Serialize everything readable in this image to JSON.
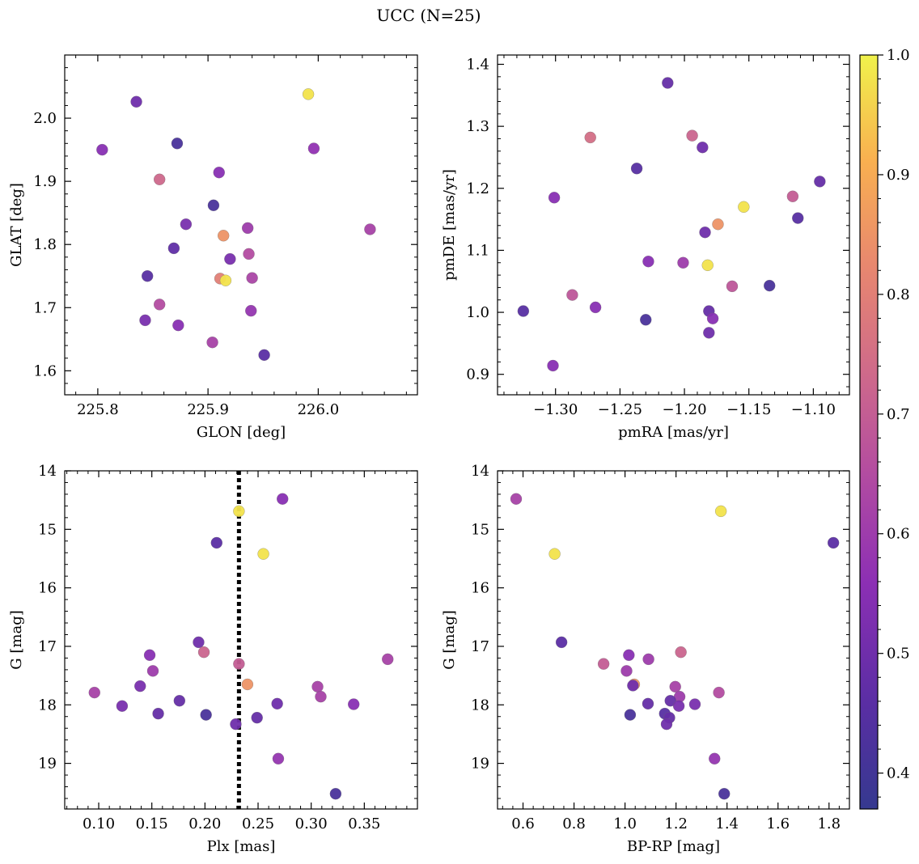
{
  "title": "UCC (N=25)",
  "colorbar": {
    "min": 0.37,
    "max": 1.0,
    "ticks": [
      0.4,
      0.5,
      0.6,
      0.7,
      0.8,
      0.9,
      1.0
    ],
    "tick_labels": [
      "0.4",
      "0.5",
      "0.6",
      "0.7",
      "0.8",
      "0.9",
      "1.0"
    ]
  },
  "chart_data": [
    {
      "type": "scatter",
      "id": "glon-glat",
      "xlabel": "GLON [deg]",
      "ylabel": "GLAT [deg]",
      "xlim": [
        225.77,
        226.09
      ],
      "ylim": [
        1.562,
        2.1
      ],
      "xticks": [
        225.8,
        225.9,
        226.0
      ],
      "xtick_labels": [
        "225.8",
        "225.9",
        "226.0"
      ],
      "yticks": [
        1.6,
        1.7,
        1.8,
        1.9,
        2.0
      ],
      "ytick_labels": [
        "1.6",
        "1.7",
        "1.8",
        "1.9",
        "2.0"
      ],
      "points": [
        {
          "x": 225.804,
          "y": 1.95,
          "c": 0.55
        },
        {
          "x": 225.835,
          "y": 2.026,
          "c": 0.5
        },
        {
          "x": 225.872,
          "y": 1.96,
          "c": 0.42
        },
        {
          "x": 225.991,
          "y": 2.038,
          "c": 0.98
        },
        {
          "x": 225.996,
          "y": 1.952,
          "c": 0.57
        },
        {
          "x": 225.856,
          "y": 1.903,
          "c": 0.73
        },
        {
          "x": 225.91,
          "y": 1.914,
          "c": 0.55
        },
        {
          "x": 225.905,
          "y": 1.862,
          "c": 0.42
        },
        {
          "x": 225.88,
          "y": 1.832,
          "c": 0.52
        },
        {
          "x": 225.914,
          "y": 1.814,
          "c": 0.85
        },
        {
          "x": 225.936,
          "y": 1.826,
          "c": 0.6
        },
        {
          "x": 226.047,
          "y": 1.824,
          "c": 0.62
        },
        {
          "x": 225.869,
          "y": 1.794,
          "c": 0.47
        },
        {
          "x": 225.937,
          "y": 1.785,
          "c": 0.65
        },
        {
          "x": 225.92,
          "y": 1.777,
          "c": 0.52
        },
        {
          "x": 225.845,
          "y": 1.75,
          "c": 0.45
        },
        {
          "x": 225.911,
          "y": 1.746,
          "c": 0.8
        },
        {
          "x": 225.916,
          "y": 1.743,
          "c": 0.98
        },
        {
          "x": 225.94,
          "y": 1.747,
          "c": 0.63
        },
        {
          "x": 225.856,
          "y": 1.705,
          "c": 0.65
        },
        {
          "x": 225.939,
          "y": 1.695,
          "c": 0.58
        },
        {
          "x": 225.843,
          "y": 1.68,
          "c": 0.52
        },
        {
          "x": 225.873,
          "y": 1.672,
          "c": 0.55
        },
        {
          "x": 225.904,
          "y": 1.645,
          "c": 0.62
        },
        {
          "x": 225.951,
          "y": 1.625,
          "c": 0.46
        }
      ]
    },
    {
      "type": "scatter",
      "id": "pmra-pmde",
      "xlabel": "pmRA [mas/yr]",
      "ylabel": "pmDE [mas/yr]",
      "xlim": [
        -1.345,
        -1.072
      ],
      "ylim": [
        0.867,
        1.415
      ],
      "xticks": [
        -1.3,
        -1.25,
        -1.2,
        -1.15,
        -1.1
      ],
      "xtick_labels": [
        "−1.30",
        "−1.25",
        "−1.20",
        "−1.15",
        "−1.10"
      ],
      "yticks": [
        0.9,
        1.0,
        1.1,
        1.2,
        1.3,
        1.4
      ],
      "ytick_labels": [
        "0.9",
        "1.0",
        "1.1",
        "1.2",
        "1.3",
        "1.4"
      ],
      "points": [
        {
          "x": -1.213,
          "y": 1.37,
          "c": 0.48
        },
        {
          "x": -1.273,
          "y": 1.282,
          "c": 0.75
        },
        {
          "x": -1.194,
          "y": 1.285,
          "c": 0.72
        },
        {
          "x": -1.186,
          "y": 1.266,
          "c": 0.5
        },
        {
          "x": -1.237,
          "y": 1.232,
          "c": 0.45
        },
        {
          "x": -1.095,
          "y": 1.211,
          "c": 0.48
        },
        {
          "x": -1.301,
          "y": 1.185,
          "c": 0.55
        },
        {
          "x": -1.116,
          "y": 1.187,
          "c": 0.7
        },
        {
          "x": -1.154,
          "y": 1.17,
          "c": 0.98
        },
        {
          "x": -1.112,
          "y": 1.152,
          "c": 0.45
        },
        {
          "x": -1.174,
          "y": 1.142,
          "c": 0.85
        },
        {
          "x": -1.184,
          "y": 1.129,
          "c": 0.5
        },
        {
          "x": -1.228,
          "y": 1.082,
          "c": 0.55
        },
        {
          "x": -1.201,
          "y": 1.08,
          "c": 0.6
        },
        {
          "x": -1.182,
          "y": 1.076,
          "c": 0.98
        },
        {
          "x": -1.163,
          "y": 1.042,
          "c": 0.68
        },
        {
          "x": -1.134,
          "y": 1.043,
          "c": 0.42
        },
        {
          "x": -1.287,
          "y": 1.028,
          "c": 0.68
        },
        {
          "x": -1.269,
          "y": 1.008,
          "c": 0.55
        },
        {
          "x": -1.325,
          "y": 1.002,
          "c": 0.45
        },
        {
          "x": -1.181,
          "y": 1.002,
          "c": 0.48
        },
        {
          "x": -1.178,
          "y": 0.99,
          "c": 0.55
        },
        {
          "x": -1.23,
          "y": 0.988,
          "c": 0.42
        },
        {
          "x": -1.181,
          "y": 0.967,
          "c": 0.5
        },
        {
          "x": -1.302,
          "y": 0.914,
          "c": 0.55
        }
      ]
    },
    {
      "type": "scatter",
      "id": "plx-g",
      "xlabel": "Plx [mas]",
      "ylabel": "G [mag]",
      "xlim": [
        0.068,
        0.4
      ],
      "ylim": [
        19.78,
        14.0
      ],
      "y_inverted": true,
      "xticks": [
        0.1,
        0.15,
        0.2,
        0.25,
        0.3,
        0.35
      ],
      "xtick_labels": [
        "0.10",
        "0.15",
        "0.20",
        "0.25",
        "0.30",
        "0.35"
      ],
      "yticks": [
        14,
        15,
        16,
        17,
        18,
        19
      ],
      "ytick_labels": [
        "14",
        "15",
        "16",
        "17",
        "18",
        "19"
      ],
      "vline": {
        "x": 0.232,
        "style": "dotted",
        "color": "#000000"
      },
      "points": [
        {
          "x": 0.273,
          "y": 14.48,
          "c": 0.55
        },
        {
          "x": 0.232,
          "y": 14.69,
          "c": 0.98
        },
        {
          "x": 0.211,
          "y": 15.23,
          "c": 0.46
        },
        {
          "x": 0.255,
          "y": 15.42,
          "c": 0.98
        },
        {
          "x": 0.194,
          "y": 16.93,
          "c": 0.5
        },
        {
          "x": 0.199,
          "y": 17.1,
          "c": 0.72
        },
        {
          "x": 0.148,
          "y": 17.15,
          "c": 0.55
        },
        {
          "x": 0.372,
          "y": 17.22,
          "c": 0.62
        },
        {
          "x": 0.232,
          "y": 17.3,
          "c": 0.7
        },
        {
          "x": 0.151,
          "y": 17.42,
          "c": 0.6
        },
        {
          "x": 0.24,
          "y": 17.65,
          "c": 0.85
        },
        {
          "x": 0.139,
          "y": 17.68,
          "c": 0.52
        },
        {
          "x": 0.306,
          "y": 17.69,
          "c": 0.62
        },
        {
          "x": 0.096,
          "y": 17.79,
          "c": 0.62
        },
        {
          "x": 0.309,
          "y": 17.86,
          "c": 0.62
        },
        {
          "x": 0.176,
          "y": 17.93,
          "c": 0.48
        },
        {
          "x": 0.268,
          "y": 17.98,
          "c": 0.5
        },
        {
          "x": 0.34,
          "y": 17.99,
          "c": 0.55
        },
        {
          "x": 0.122,
          "y": 18.02,
          "c": 0.52
        },
        {
          "x": 0.156,
          "y": 18.15,
          "c": 0.48
        },
        {
          "x": 0.201,
          "y": 18.17,
          "c": 0.42
        },
        {
          "x": 0.249,
          "y": 18.22,
          "c": 0.48
        },
        {
          "x": 0.229,
          "y": 18.33,
          "c": 0.5
        },
        {
          "x": 0.269,
          "y": 18.92,
          "c": 0.58
        },
        {
          "x": 0.323,
          "y": 19.52,
          "c": 0.42
        }
      ]
    },
    {
      "type": "scatter",
      "id": "bprp-g",
      "xlabel": "BP-RP [mag]",
      "ylabel": "G [mag]",
      "xlim": [
        0.5,
        1.88
      ],
      "ylim": [
        19.78,
        14.0
      ],
      "y_inverted": true,
      "xticks": [
        0.6,
        0.8,
        1.0,
        1.2,
        1.4,
        1.6,
        1.8
      ],
      "xtick_labels": [
        "0.6",
        "0.8",
        "1.0",
        "1.2",
        "1.4",
        "1.6",
        "1.8"
      ],
      "yticks": [
        14,
        15,
        16,
        17,
        18,
        19
      ],
      "ytick_labels": [
        "14",
        "15",
        "16",
        "17",
        "18",
        "19"
      ],
      "points": [
        {
          "x": 0.573,
          "y": 14.48,
          "c": 0.62
        },
        {
          "x": 1.376,
          "y": 14.69,
          "c": 0.98
        },
        {
          "x": 1.817,
          "y": 15.23,
          "c": 0.46
        },
        {
          "x": 0.724,
          "y": 15.42,
          "c": 0.98
        },
        {
          "x": 0.751,
          "y": 16.93,
          "c": 0.46
        },
        {
          "x": 1.219,
          "y": 17.1,
          "c": 0.72
        },
        {
          "x": 1.015,
          "y": 17.15,
          "c": 0.55
        },
        {
          "x": 1.092,
          "y": 17.22,
          "c": 0.6
        },
        {
          "x": 0.916,
          "y": 17.3,
          "c": 0.7
        },
        {
          "x": 1.006,
          "y": 17.42,
          "c": 0.6
        },
        {
          "x": 1.036,
          "y": 17.65,
          "c": 0.85
        },
        {
          "x": 1.031,
          "y": 17.67,
          "c": 0.5
        },
        {
          "x": 1.197,
          "y": 17.69,
          "c": 0.62
        },
        {
          "x": 1.368,
          "y": 17.79,
          "c": 0.65
        },
        {
          "x": 1.214,
          "y": 17.86,
          "c": 0.6
        },
        {
          "x": 1.178,
          "y": 17.93,
          "c": 0.48
        },
        {
          "x": 1.09,
          "y": 17.98,
          "c": 0.48
        },
        {
          "x": 1.274,
          "y": 17.99,
          "c": 0.52
        },
        {
          "x": 1.211,
          "y": 18.02,
          "c": 0.52
        },
        {
          "x": 1.156,
          "y": 18.15,
          "c": 0.45
        },
        {
          "x": 1.02,
          "y": 18.17,
          "c": 0.42
        },
        {
          "x": 1.174,
          "y": 18.22,
          "c": 0.48
        },
        {
          "x": 1.163,
          "y": 18.33,
          "c": 0.5
        },
        {
          "x": 1.351,
          "y": 18.92,
          "c": 0.58
        },
        {
          "x": 1.389,
          "y": 19.52,
          "c": 0.42
        }
      ]
    }
  ]
}
